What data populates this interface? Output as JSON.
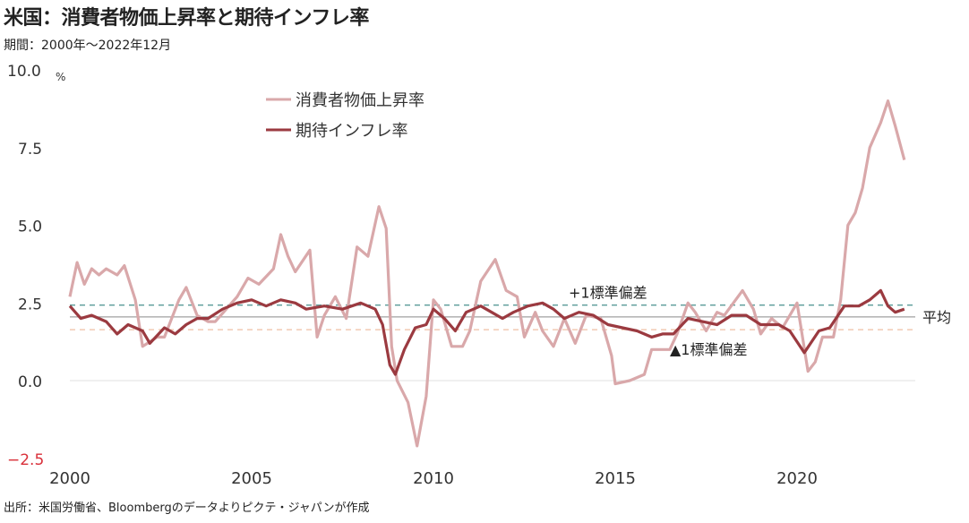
{
  "title": "米国：消費者物価上昇率と期待インフレ率",
  "subtitle": "期間：2000年～2022年12月",
  "source": "出所：米国労働省、Bloombergのデータよりピクテ・ジャパンが作成",
  "colors": {
    "cpi": "#d9a8aa",
    "expected": "#9b3a40",
    "plus_sd": "#5a9a98",
    "minus_sd": "#efbfa3",
    "mean": "#a0a0a0",
    "negative_tick": "#d9303a"
  },
  "chart_data": {
    "type": "line",
    "title": "米国：消費者物価上昇率と期待インフレ率",
    "ylabel": "%",
    "ylim": [
      -2.5,
      10.0
    ],
    "xlim": [
      2000,
      2023.5
    ],
    "yticks": [
      "10.0",
      "7.5",
      "5.0",
      "2.5",
      "0.0",
      "-2.5"
    ],
    "xticks": [
      "2000",
      "2005",
      "2010",
      "2015",
      "2020"
    ],
    "legend": "top-center",
    "reference_lines": [
      {
        "label": "+1標準偏差",
        "value": 2.43,
        "style": "dashed"
      },
      {
        "label": "平均",
        "value": 2.05,
        "style": "solid"
      },
      {
        "label": "▲1標準偏差",
        "value": 1.64,
        "style": "dashed"
      }
    ],
    "series": [
      {
        "name": "消費者物価上昇率",
        "points": [
          [
            2000.0,
            2.7
          ],
          [
            2000.2,
            3.8
          ],
          [
            2000.4,
            3.1
          ],
          [
            2000.6,
            3.6
          ],
          [
            2000.8,
            3.4
          ],
          [
            2001.0,
            3.6
          ],
          [
            2001.3,
            3.4
          ],
          [
            2001.5,
            3.7
          ],
          [
            2001.8,
            2.6
          ],
          [
            2002.0,
            1.1
          ],
          [
            2002.4,
            1.4
          ],
          [
            2002.6,
            1.4
          ],
          [
            2003.0,
            2.6
          ],
          [
            2003.2,
            3.0
          ],
          [
            2003.5,
            2.1
          ],
          [
            2003.8,
            1.9
          ],
          [
            2004.0,
            1.9
          ],
          [
            2004.3,
            2.3
          ],
          [
            2004.6,
            2.7
          ],
          [
            2004.9,
            3.3
          ],
          [
            2005.2,
            3.1
          ],
          [
            2005.6,
            3.6
          ],
          [
            2005.8,
            4.7
          ],
          [
            2006.0,
            4.0
          ],
          [
            2006.2,
            3.5
          ],
          [
            2006.6,
            4.2
          ],
          [
            2006.8,
            1.4
          ],
          [
            2007.0,
            2.1
          ],
          [
            2007.3,
            2.7
          ],
          [
            2007.6,
            2.0
          ],
          [
            2007.9,
            4.3
          ],
          [
            2008.2,
            4.0
          ],
          [
            2008.5,
            5.6
          ],
          [
            2008.7,
            4.9
          ],
          [
            2008.85,
            1.1
          ],
          [
            2009.0,
            0.0
          ],
          [
            2009.3,
            -0.7
          ],
          [
            2009.55,
            -2.1
          ],
          [
            2009.8,
            -0.5
          ],
          [
            2010.0,
            2.6
          ],
          [
            2010.2,
            2.3
          ],
          [
            2010.5,
            1.1
          ],
          [
            2010.8,
            1.1
          ],
          [
            2011.0,
            1.6
          ],
          [
            2011.3,
            3.2
          ],
          [
            2011.7,
            3.9
          ],
          [
            2012.0,
            2.9
          ],
          [
            2012.3,
            2.7
          ],
          [
            2012.5,
            1.4
          ],
          [
            2012.8,
            2.2
          ],
          [
            2013.0,
            1.6
          ],
          [
            2013.3,
            1.1
          ],
          [
            2013.6,
            2.0
          ],
          [
            2013.9,
            1.2
          ],
          [
            2014.2,
            2.1
          ],
          [
            2014.6,
            2.0
          ],
          [
            2014.9,
            0.8
          ],
          [
            2015.0,
            -0.1
          ],
          [
            2015.4,
            0.0
          ],
          [
            2015.8,
            0.2
          ],
          [
            2016.0,
            1.0
          ],
          [
            2016.3,
            1.0
          ],
          [
            2016.5,
            1.0
          ],
          [
            2016.7,
            1.5
          ],
          [
            2017.0,
            2.5
          ],
          [
            2017.2,
            2.2
          ],
          [
            2017.5,
            1.6
          ],
          [
            2017.8,
            2.2
          ],
          [
            2018.0,
            2.1
          ],
          [
            2018.5,
            2.9
          ],
          [
            2018.8,
            2.3
          ],
          [
            2019.0,
            1.5
          ],
          [
            2019.3,
            2.0
          ],
          [
            2019.6,
            1.7
          ],
          [
            2020.0,
            2.5
          ],
          [
            2020.3,
            0.3
          ],
          [
            2020.5,
            0.6
          ],
          [
            2020.7,
            1.4
          ],
          [
            2021.0,
            1.4
          ],
          [
            2021.2,
            2.6
          ],
          [
            2021.4,
            5.0
          ],
          [
            2021.6,
            5.4
          ],
          [
            2021.8,
            6.2
          ],
          [
            2022.0,
            7.5
          ],
          [
            2022.3,
            8.3
          ],
          [
            2022.5,
            9.0
          ],
          [
            2022.7,
            8.2
          ],
          [
            2022.95,
            7.1
          ]
        ]
      },
      {
        "name": "期待インフレ率",
        "points": [
          [
            2000.0,
            2.4
          ],
          [
            2000.3,
            2.0
          ],
          [
            2000.6,
            2.1
          ],
          [
            2001.0,
            1.9
          ],
          [
            2001.3,
            1.5
          ],
          [
            2001.6,
            1.8
          ],
          [
            2002.0,
            1.6
          ],
          [
            2002.2,
            1.2
          ],
          [
            2002.6,
            1.7
          ],
          [
            2002.9,
            1.5
          ],
          [
            2003.2,
            1.8
          ],
          [
            2003.5,
            2.0
          ],
          [
            2003.8,
            2.0
          ],
          [
            2004.2,
            2.3
          ],
          [
            2004.6,
            2.5
          ],
          [
            2005.0,
            2.6
          ],
          [
            2005.4,
            2.4
          ],
          [
            2005.8,
            2.6
          ],
          [
            2006.2,
            2.5
          ],
          [
            2006.5,
            2.3
          ],
          [
            2007.0,
            2.4
          ],
          [
            2007.5,
            2.3
          ],
          [
            2008.0,
            2.5
          ],
          [
            2008.4,
            2.3
          ],
          [
            2008.6,
            1.8
          ],
          [
            2008.8,
            0.5
          ],
          [
            2008.95,
            0.2
          ],
          [
            2009.2,
            1.0
          ],
          [
            2009.5,
            1.7
          ],
          [
            2009.8,
            1.8
          ],
          [
            2010.0,
            2.3
          ],
          [
            2010.3,
            2.0
          ],
          [
            2010.6,
            1.6
          ],
          [
            2010.9,
            2.2
          ],
          [
            2011.3,
            2.4
          ],
          [
            2011.6,
            2.2
          ],
          [
            2011.9,
            2.0
          ],
          [
            2012.2,
            2.2
          ],
          [
            2012.6,
            2.4
          ],
          [
            2013.0,
            2.5
          ],
          [
            2013.3,
            2.3
          ],
          [
            2013.6,
            2.0
          ],
          [
            2014.0,
            2.2
          ],
          [
            2014.4,
            2.1
          ],
          [
            2014.8,
            1.8
          ],
          [
            2015.2,
            1.7
          ],
          [
            2015.6,
            1.6
          ],
          [
            2016.0,
            1.4
          ],
          [
            2016.3,
            1.5
          ],
          [
            2016.6,
            1.5
          ],
          [
            2017.0,
            2.0
          ],
          [
            2017.4,
            1.9
          ],
          [
            2017.8,
            1.8
          ],
          [
            2018.2,
            2.1
          ],
          [
            2018.6,
            2.1
          ],
          [
            2019.0,
            1.8
          ],
          [
            2019.5,
            1.8
          ],
          [
            2019.8,
            1.6
          ],
          [
            2020.2,
            0.9
          ],
          [
            2020.6,
            1.6
          ],
          [
            2020.9,
            1.7
          ],
          [
            2021.3,
            2.4
          ],
          [
            2021.7,
            2.4
          ],
          [
            2022.0,
            2.6
          ],
          [
            2022.3,
            2.9
          ],
          [
            2022.5,
            2.4
          ],
          [
            2022.7,
            2.2
          ],
          [
            2022.95,
            2.3
          ]
        ]
      }
    ]
  }
}
